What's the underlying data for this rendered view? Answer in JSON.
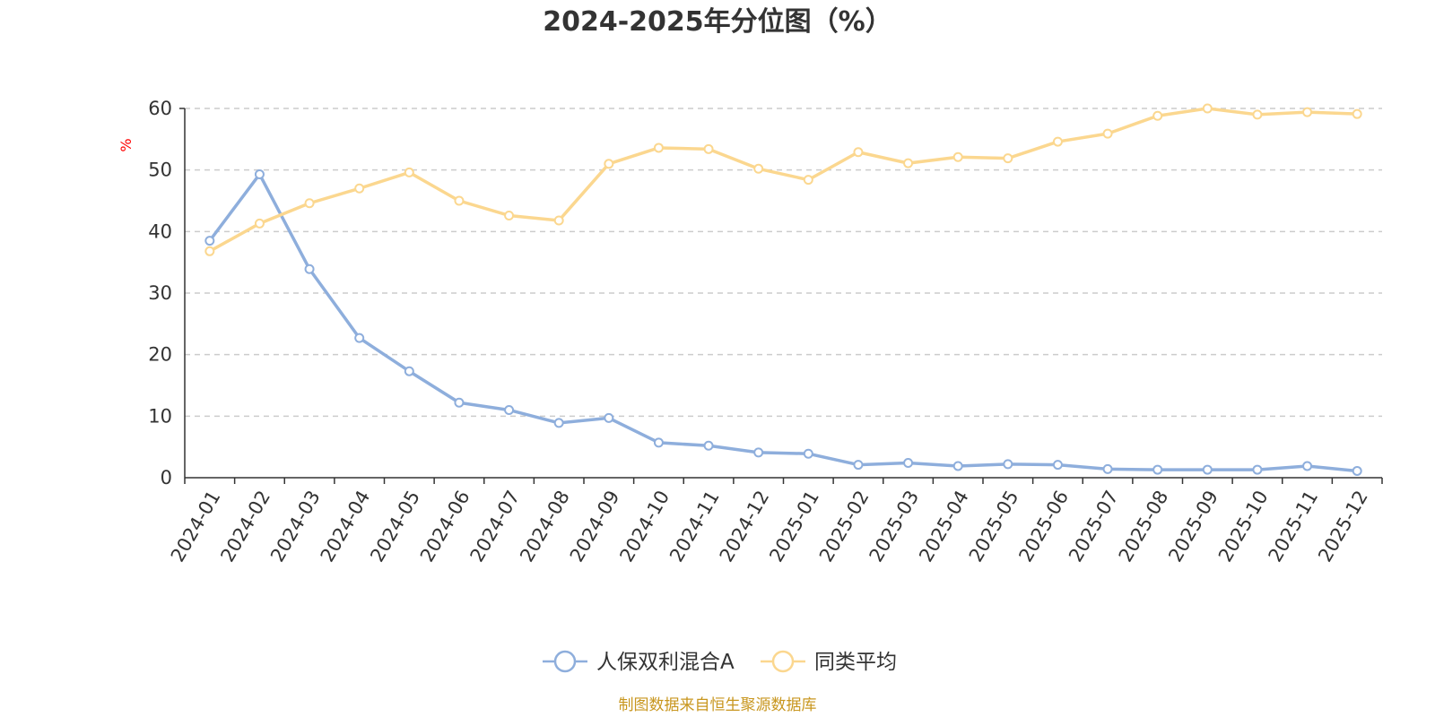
{
  "chart_data": {
    "type": "line",
    "title": "2024-2025年分位图（%）",
    "ylabel": "%",
    "ylim": [
      0,
      60
    ],
    "yticks": [
      0,
      10,
      20,
      30,
      40,
      50,
      60
    ],
    "grid": true,
    "categories": [
      "2024-01",
      "2024-02",
      "2024-03",
      "2024-04",
      "2024-05",
      "2024-06",
      "2024-07",
      "2024-08",
      "2024-09",
      "2024-10",
      "2024-11",
      "2024-12",
      "2025-01",
      "2025-02",
      "2025-03",
      "2025-04",
      "2025-05",
      "2025-06",
      "2025-07",
      "2025-08",
      "2025-09",
      "2025-10",
      "2025-11",
      "2025-12"
    ],
    "series": [
      {
        "name": "人保双利混合A",
        "color": "#8eaedc",
        "values": [
          38.5,
          49.3,
          33.9,
          22.7,
          17.3,
          12.2,
          11.0,
          8.9,
          9.7,
          5.7,
          5.2,
          4.1,
          3.9,
          2.1,
          2.4,
          1.9,
          2.2,
          2.1,
          1.4,
          1.3,
          1.3,
          1.3,
          1.9,
          1.1
        ]
      },
      {
        "name": "同类平均",
        "color": "#fbd78f",
        "values": [
          36.8,
          41.3,
          44.6,
          47.0,
          49.6,
          45.0,
          42.6,
          41.8,
          51.0,
          53.6,
          53.4,
          50.2,
          48.4,
          52.9,
          51.1,
          52.1,
          51.9,
          54.6,
          55.9,
          58.8,
          60.0,
          59.0,
          59.4,
          59.1
        ]
      }
    ],
    "legend_position": "bottom-center"
  },
  "source_text": "制图数据来自恒生聚源数据库",
  "source_color": "#c8961e",
  "ylabel_color": "#ff0000"
}
